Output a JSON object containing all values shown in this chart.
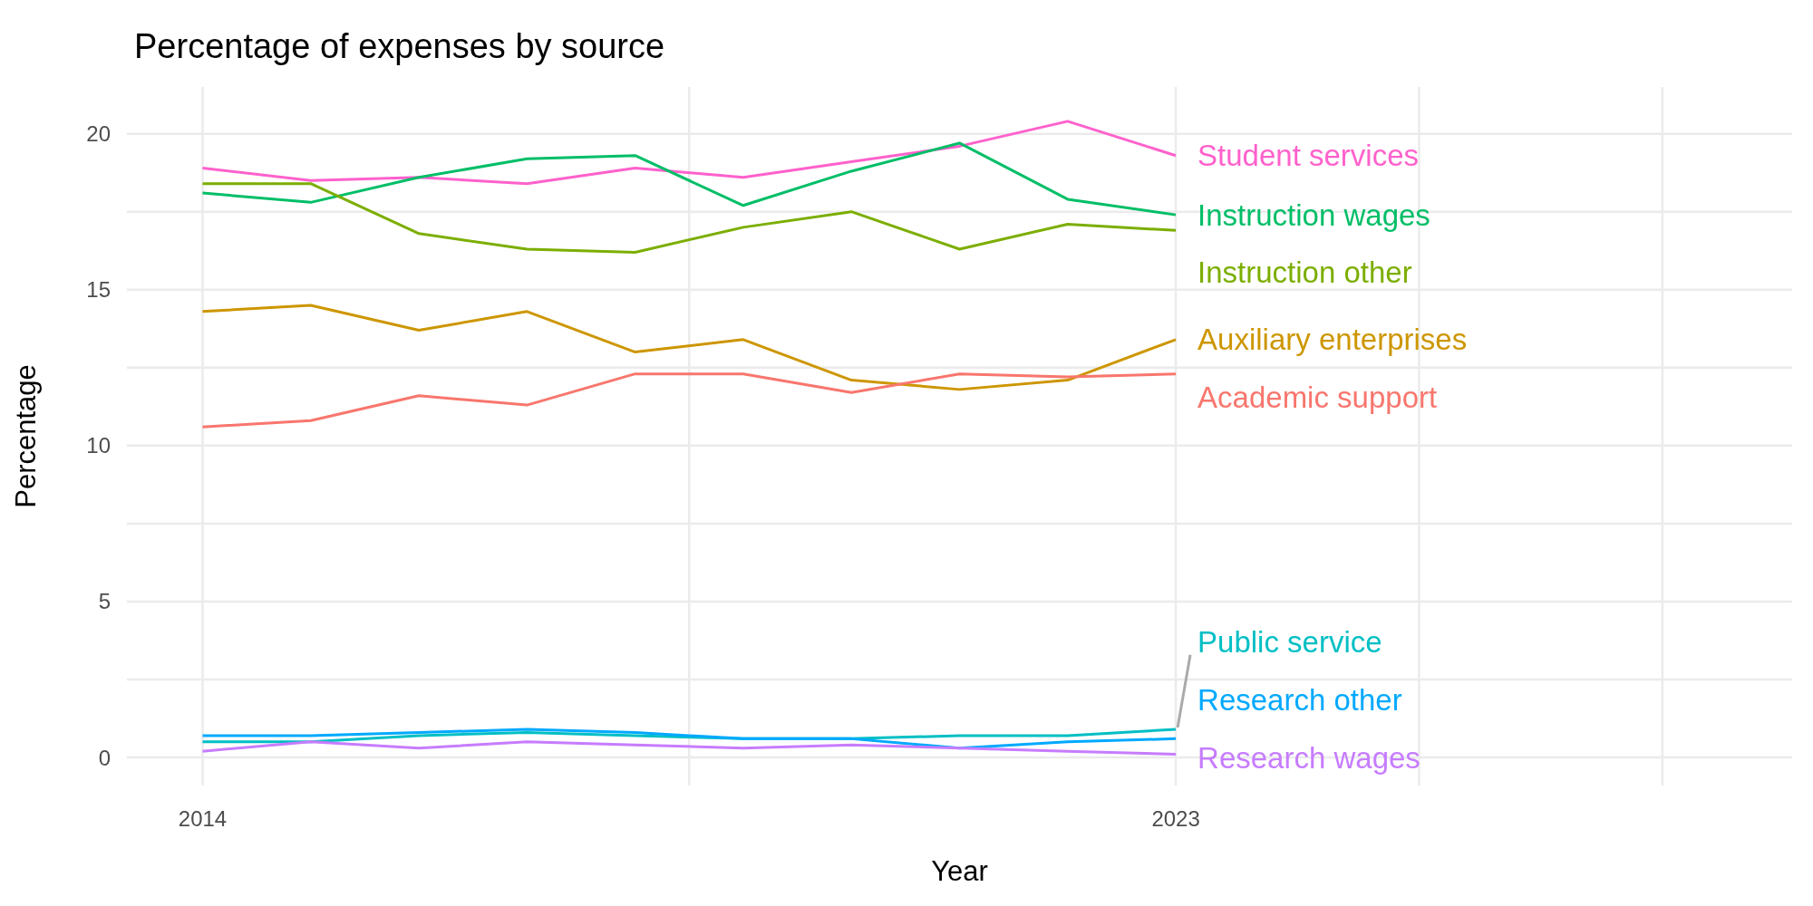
{
  "chart_data": {
    "type": "line",
    "title": "Percentage of expenses by source",
    "xlabel": "Year",
    "ylabel": "Percentage",
    "x": [
      2014,
      2015,
      2016,
      2017,
      2018,
      2019,
      2020,
      2021,
      2022,
      2023
    ],
    "xlim": [
      2013.3,
      2028.7
    ],
    "xticks": [
      2014,
      {
        "value": 2018.5,
        "label": null
      },
      2023,
      {
        "value": 2025.25,
        "label": null
      },
      {
        "value": 2027.5,
        "label": null
      }
    ],
    "ylim": [
      -0.9,
      21.5
    ],
    "yticks": [
      0,
      {
        "value": 2.5,
        "label": null
      },
      5,
      {
        "value": 7.5,
        "label": null
      },
      10,
      {
        "value": 12.5,
        "label": null
      },
      15,
      {
        "value": 17.5,
        "label": null
      },
      20
    ],
    "grid": true,
    "line_style": "solid",
    "marker": "none",
    "series": [
      {
        "name": "Student services",
        "color": "#ff61cc",
        "values": [
          18.9,
          18.5,
          18.6,
          18.4,
          18.9,
          18.6,
          19.1,
          19.6,
          20.4,
          19.3
        ]
      },
      {
        "name": "Instruction wages",
        "color": "#00be67",
        "values": [
          18.1,
          17.8,
          18.6,
          19.2,
          19.3,
          17.7,
          18.8,
          19.7,
          17.9,
          17.4
        ]
      },
      {
        "name": "Instruction other",
        "color": "#7cae00",
        "values": [
          18.4,
          18.4,
          16.8,
          16.3,
          16.2,
          17.0,
          17.5,
          16.3,
          17.1,
          16.9
        ]
      },
      {
        "name": "Auxiliary enterprises",
        "color": "#cd9600",
        "values": [
          14.3,
          14.5,
          13.7,
          14.3,
          13.0,
          13.4,
          12.1,
          11.8,
          12.1,
          13.4
        ]
      },
      {
        "name": "Academic support",
        "color": "#f8766d",
        "values": [
          10.6,
          10.8,
          11.6,
          11.3,
          12.3,
          12.3,
          11.7,
          12.3,
          12.2,
          12.3
        ]
      },
      {
        "name": "Public service",
        "color": "#00bfc4",
        "values": [
          0.5,
          0.5,
          0.7,
          0.8,
          0.7,
          0.6,
          0.6,
          0.7,
          0.7,
          0.9
        ]
      },
      {
        "name": "Research other",
        "color": "#00a9ff",
        "values": [
          0.7,
          0.7,
          0.8,
          0.9,
          0.8,
          0.6,
          0.6,
          0.3,
          0.5,
          0.6
        ]
      },
      {
        "name": "Research wages",
        "color": "#c77cff",
        "values": [
          0.2,
          0.5,
          0.3,
          0.5,
          0.4,
          0.3,
          0.4,
          0.3,
          0.2,
          0.1
        ]
      }
    ]
  }
}
